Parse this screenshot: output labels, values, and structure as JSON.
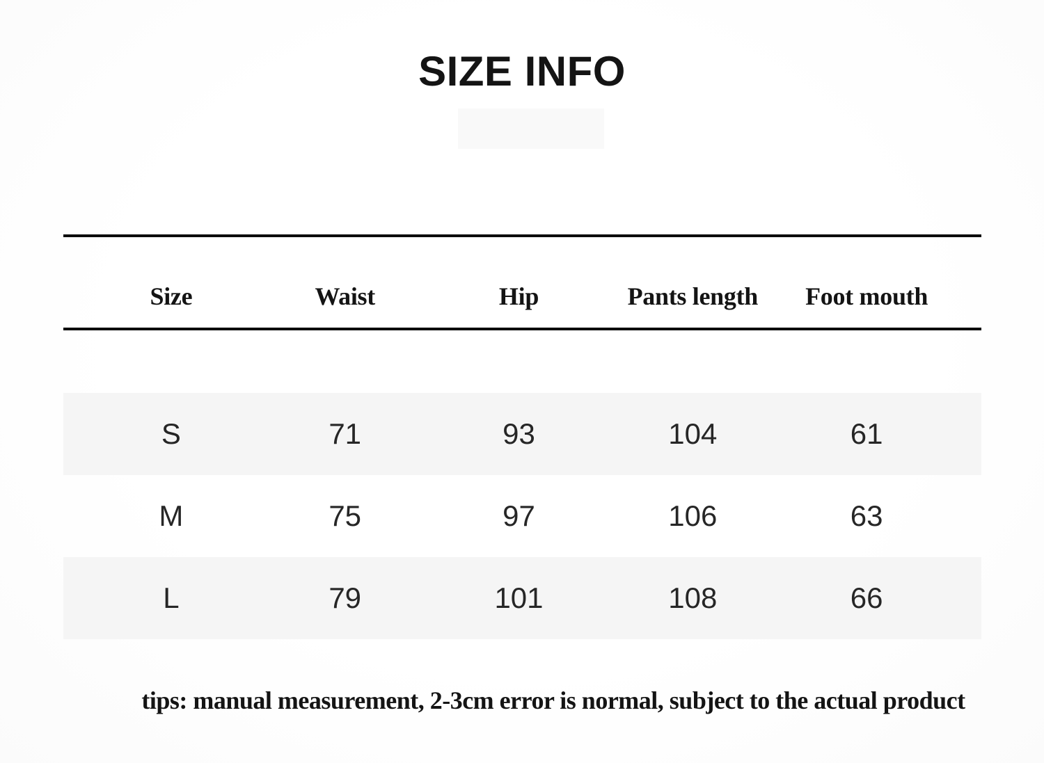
{
  "chart_data": {
    "type": "table",
    "title": "SIZE INFO",
    "columns": [
      "Size",
      "Waist",
      "Hip",
      "Pants length",
      "Foot mouth"
    ],
    "rows": [
      [
        "S",
        71,
        93,
        104,
        61
      ],
      [
        "M",
        75,
        97,
        106,
        63
      ],
      [
        "L",
        79,
        101,
        108,
        66
      ]
    ],
    "note": "tips: manual measurement, 2-3cm error is normal, subject to the actual product"
  },
  "colors": {
    "rule": "#0c0c0c",
    "row_stripe": "#f5f5f5",
    "text_primary": "#141414",
    "text_data": "#262626"
  }
}
